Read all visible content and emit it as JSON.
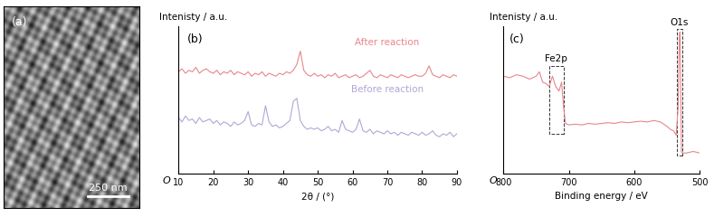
{
  "chart_data": [
    {
      "type": "image",
      "panel_label": "(a)",
      "scale_bar": "250 nm"
    },
    {
      "type": "line",
      "panel_label": "(b)",
      "y_label": "Intenisty / a.u.",
      "x_label": "2θ / (°)",
      "origin_label": "O",
      "xlim": [
        10,
        90
      ],
      "xticks": [
        10,
        20,
        30,
        40,
        50,
        60,
        70,
        80,
        90
      ],
      "ylim": [
        0,
        10
      ],
      "yticks": [],
      "tick_labels": "x",
      "x": [
        10,
        11,
        12,
        13,
        14,
        15,
        16,
        17,
        18,
        19,
        20,
        21,
        22,
        23,
        24,
        25,
        26,
        27,
        28,
        29,
        30,
        31,
        32,
        33,
        34,
        35,
        36,
        37,
        38,
        39,
        40,
        41,
        42,
        43,
        44,
        45,
        46,
        47,
        48,
        49,
        50,
        51,
        52,
        53,
        54,
        55,
        56,
        57,
        58,
        59,
        60,
        61,
        62,
        63,
        64,
        65,
        66,
        67,
        68,
        69,
        70,
        71,
        72,
        73,
        74,
        75,
        76,
        77,
        78,
        79,
        80,
        81,
        82,
        83,
        84,
        85,
        86,
        87,
        88,
        89,
        90
      ],
      "series": [
        {
          "name": "After reaction",
          "color": "#e8868b",
          "values": [
            6.9,
            7.1,
            6.8,
            7.0,
            6.9,
            7.2,
            6.8,
            7.0,
            7.1,
            6.9,
            6.8,
            7.0,
            6.7,
            6.9,
            6.8,
            7.0,
            6.7,
            6.9,
            6.8,
            6.7,
            6.9,
            6.6,
            6.8,
            6.7,
            6.9,
            6.6,
            6.8,
            6.7,
            6.6,
            6.8,
            6.7,
            6.9,
            6.8,
            7.0,
            7.4,
            8.3,
            7.0,
            6.7,
            6.6,
            6.8,
            6.6,
            6.7,
            6.5,
            6.7,
            6.6,
            6.8,
            6.5,
            6.6,
            6.7,
            6.5,
            6.6,
            6.7,
            6.5,
            6.6,
            6.8,
            7.0,
            6.6,
            6.5,
            6.7,
            6.6,
            6.5,
            6.7,
            6.6,
            6.5,
            6.7,
            6.6,
            6.5,
            6.6,
            6.7,
            6.6,
            6.6,
            6.8,
            7.3,
            6.7,
            6.6,
            6.5,
            6.7,
            6.6,
            6.5,
            6.7,
            6.6
          ]
        },
        {
          "name": "Before reaction",
          "color": "#b3a6d6",
          "values": [
            3.8,
            3.5,
            3.9,
            3.6,
            3.7,
            3.4,
            3.8,
            3.5,
            3.6,
            3.7,
            3.4,
            3.6,
            3.3,
            3.5,
            3.4,
            3.2,
            3.5,
            3.3,
            3.4,
            3.6,
            4.2,
            3.3,
            3.2,
            3.4,
            3.3,
            4.6,
            3.5,
            3.2,
            3.3,
            3.1,
            3.2,
            3.4,
            3.6,
            4.9,
            5.1,
            3.6,
            3.2,
            3.0,
            3.1,
            3.0,
            3.1,
            2.9,
            3.0,
            3.2,
            2.9,
            3.0,
            2.8,
            3.6,
            3.0,
            2.9,
            2.8,
            3.0,
            3.7,
            2.9,
            2.8,
            3.0,
            2.7,
            2.9,
            2.8,
            2.7,
            2.9,
            2.7,
            2.8,
            2.6,
            2.8,
            2.7,
            2.6,
            2.8,
            2.7,
            2.6,
            2.8,
            2.6,
            2.7,
            2.9,
            2.6,
            2.5,
            2.7,
            2.6,
            2.8,
            2.5,
            2.7
          ]
        }
      ]
    },
    {
      "type": "line",
      "panel_label": "(c)",
      "y_label": "Intenisty / a.u.",
      "x_label": "Binding energy / eV",
      "origin_label": "O",
      "xlim": [
        800,
        500
      ],
      "xticks": [
        800,
        700,
        600,
        500
      ],
      "ylim": [
        0,
        10
      ],
      "yticks": [],
      "tick_labels": "x",
      "x": [
        800,
        790,
        780,
        770,
        760,
        750,
        745,
        740,
        735,
        730,
        725,
        720,
        715,
        711,
        708,
        705,
        700,
        690,
        680,
        670,
        660,
        650,
        640,
        630,
        620,
        610,
        600,
        590,
        580,
        570,
        560,
        550,
        545,
        540,
        536,
        533,
        531,
        530,
        529,
        528,
        527,
        520,
        510,
        500
      ],
      "series": [
        {
          "color": "#e8868b",
          "values": [
            6.6,
            6.5,
            6.7,
            6.6,
            6.4,
            6.6,
            6.9,
            6.2,
            6.1,
            5.9,
            6.6,
            5.9,
            5.6,
            6.2,
            4.5,
            3.4,
            3.3,
            3.35,
            3.3,
            3.4,
            3.35,
            3.4,
            3.45,
            3.4,
            3.5,
            3.45,
            3.5,
            3.55,
            3.5,
            3.6,
            3.5,
            3.2,
            3.0,
            2.9,
            2.6,
            4.5,
            9.5,
            9.6,
            6.0,
            1.5,
            1.4,
            1.4,
            1.5,
            1.4
          ]
        }
      ],
      "annotations": [
        {
          "text": "Fe2p",
          "x": [
            730,
            708
          ],
          "y": [
            2.7,
            7.3
          ]
        },
        {
          "text": "O1s",
          "x": [
            535,
            527
          ],
          "y": [
            1.2,
            9.8
          ]
        }
      ]
    }
  ]
}
